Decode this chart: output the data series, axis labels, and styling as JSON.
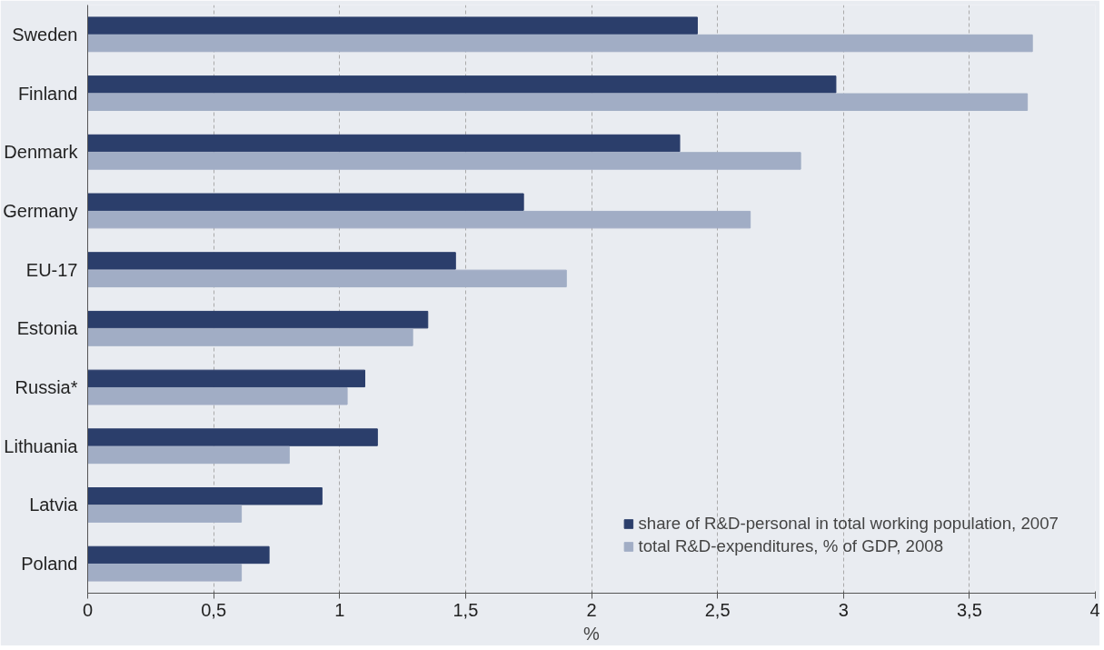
{
  "chart_data": {
    "type": "bar",
    "orientation": "horizontal",
    "categories": [
      "Sweden",
      "Finland",
      "Denmark",
      "Germany",
      "EU-17",
      "Estonia",
      "Russia*",
      "Lithuania",
      "Latvia",
      "Poland"
    ],
    "series": [
      {
        "name": "share of R&D-personal in total working population, 2007",
        "color": "#2b3e6b",
        "values": [
          2.42,
          2.97,
          2.35,
          1.73,
          1.46,
          1.35,
          1.1,
          1.15,
          0.93,
          0.72
        ]
      },
      {
        "name": "total R&D-expenditures, % of GDP, 2008",
        "color": "#a1adc5",
        "values": [
          3.75,
          3.73,
          2.83,
          2.63,
          1.9,
          1.29,
          1.03,
          0.8,
          0.61,
          0.61
        ]
      }
    ],
    "xlabel": "%",
    "xlim": [
      0,
      4
    ],
    "xticks": [
      0,
      {
        "value": 0.5,
        "label": "0,5"
      },
      1,
      {
        "value": 1.5,
        "label": "1,5"
      },
      2,
      {
        "value": 2.5,
        "label": "2,5"
      },
      3,
      {
        "value": 3.5,
        "label": "3,5"
      },
      4
    ],
    "grid": "x",
    "legend": "bottom right"
  }
}
